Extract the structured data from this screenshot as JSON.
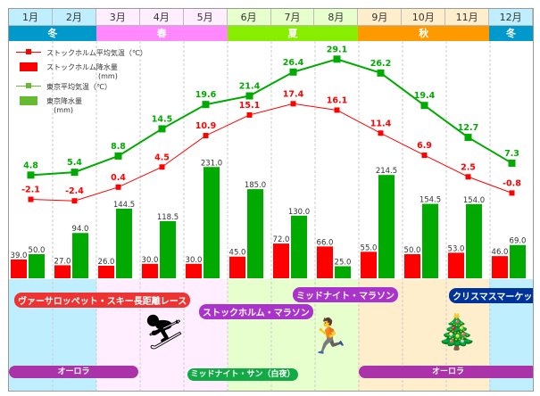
{
  "months": [
    "1月",
    "2月",
    "3月",
    "4月",
    "5月",
    "6月",
    "7月",
    "8月",
    "9月",
    "10月",
    "11月",
    "12月"
  ],
  "seasons": [
    {
      "label": "冬",
      "span": 2,
      "color": "#0099cc"
    },
    {
      "label": "春",
      "span": 3,
      "color": "#ff88ff"
    },
    {
      "label": "夏",
      "span": 3,
      "color": "#88ee00"
    },
    {
      "label": "秋",
      "span": 3,
      "color": "#ff9900"
    },
    {
      "label": "冬",
      "span": 1,
      "color": "#0099cc"
    }
  ],
  "legend": {
    "sthlm_temp": "ストックホルム平均気温（℃）",
    "sthlm_rain": "ストックホルム降水量",
    "sthlm_rain_unit": "(mm)",
    "tokyo_temp": "東京平均気温（℃）",
    "tokyo_rain": "東京降水量",
    "tokyo_rain_unit": "(mm)"
  },
  "chart_data": {
    "type": "bar+line",
    "categories": [
      "1月",
      "2月",
      "3月",
      "4月",
      "5月",
      "6月",
      "7月",
      "8月",
      "9月",
      "10月",
      "11月",
      "12月"
    ],
    "series": [
      {
        "name": "ストックホルム平均気温（℃）",
        "kind": "line",
        "color": "#ff0000",
        "values": [
          -2.1,
          -2.4,
          0.4,
          4.5,
          10.9,
          15.1,
          17.4,
          16.1,
          11.4,
          6.9,
          2.5,
          -0.8
        ]
      },
      {
        "name": "東京平均気温（℃）",
        "kind": "line",
        "color": "#00aa00",
        "values": [
          4.8,
          5.4,
          8.8,
          14.5,
          19.6,
          21.4,
          26.4,
          29.1,
          26.2,
          19.4,
          12.7,
          7.3
        ]
      },
      {
        "name": "ストックホルム降水量(mm)",
        "kind": "bar",
        "color": "#ff0000",
        "values": [
          39.0,
          27.0,
          26.0,
          30.0,
          30.0,
          45.0,
          72.0,
          66.0,
          55.0,
          50.0,
          53.0,
          46.0
        ]
      },
      {
        "name": "東京降水量(mm)",
        "kind": "bar",
        "color": "#00aa00",
        "values": [
          50.0,
          94.0,
          144.5,
          118.5,
          231.0,
          185.0,
          130.0,
          25.0,
          214.5,
          154.5,
          154.0,
          69.0
        ]
      }
    ]
  },
  "events": {
    "vasaloppet": "ヴァーサロッペット・スキー長距離レース",
    "stockholm_marathon": "ストックホルム・マラソン",
    "midnight_marathon": "ミッドナイト・マラソン",
    "christmas_market": "クリスマスマーケット",
    "aurora1": "オーロラ",
    "midnight_sun": "ミッドナイト・サン（白夜）",
    "aurora2": "オーロラ"
  }
}
